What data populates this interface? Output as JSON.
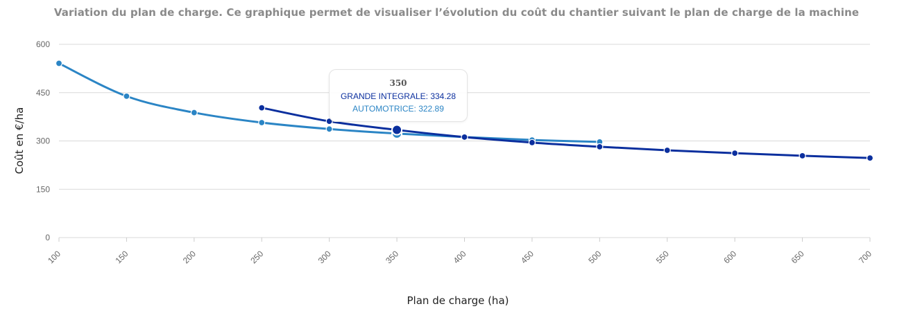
{
  "chart_data": {
    "type": "line",
    "title": "Variation du plan de charge. Ce graphique permet de visualiser l’évolution du coût du chantier suivant le plan de charge de la machine",
    "xlabel": "Plan de charge (ha)",
    "ylabel": "Coût en €/ha",
    "xlim": [
      100,
      700
    ],
    "ylim": [
      0,
      600
    ],
    "x_ticks": [
      "100",
      "150",
      "200",
      "250",
      "300",
      "350",
      "400",
      "450",
      "500",
      "550",
      "600",
      "650",
      "700"
    ],
    "y_ticks": [
      "0",
      "150",
      "300",
      "450",
      "600"
    ],
    "grid": "horizontal",
    "series": [
      {
        "name": "AUTOMOTRICE",
        "color": "#2b85c5",
        "x": [
          100,
          150,
          200,
          250,
          300,
          350,
          400,
          450,
          500
        ],
        "values": [
          541,
          439,
          388,
          357,
          337,
          322.89,
          312,
          303,
          297
        ]
      },
      {
        "name": "GRANDE INTEGRALE",
        "color": "#0b2f9e",
        "x": [
          250,
          300,
          350,
          400,
          450,
          500,
          550,
          600,
          650,
          700
        ],
        "values": [
          403,
          361,
          334.28,
          312,
          295,
          282,
          271,
          262,
          254,
          247
        ]
      }
    ],
    "tooltip": {
      "header": "350",
      "lines": [
        {
          "text": "GRANDE INTEGRALE: 334.28",
          "color": "#0b2f9e"
        },
        {
          "text": "AUTOMOTRICE: 322.89",
          "color": "#2b85c5"
        }
      ]
    }
  }
}
